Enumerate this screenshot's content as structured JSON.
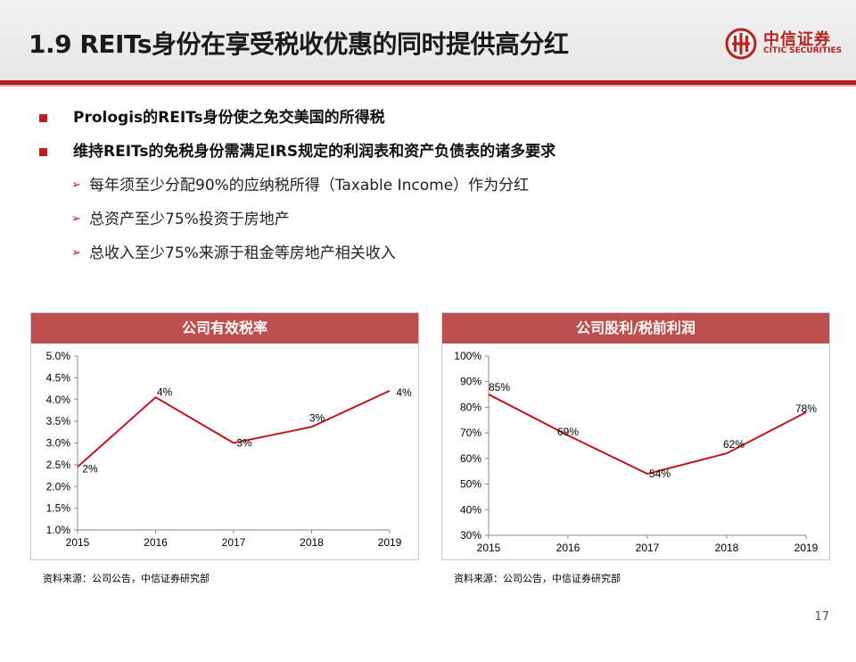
{
  "slide": {
    "title": "1.9 REITs身份在享受税收优惠的同时提供高分红",
    "page_number": "17",
    "logo": {
      "cn": "中信证券",
      "en": "CITIC SECURITIES"
    }
  },
  "bullets": [
    {
      "level": 1,
      "text": "Prologis的REITs身份使之免交美国的所得税"
    },
    {
      "level": 1,
      "text": "维持REITs的免税身份需满足IRS规定的利润表和资产负债表的诸多要求"
    },
    {
      "level": 2,
      "text": "每年须至少分配90%的应纳税所得（Taxable  Income）作为分红"
    },
    {
      "level": 2,
      "text": "总资产至少75%投资于房地产"
    },
    {
      "level": 2,
      "text": "总收入至少75%来源于租金等房地产相关收入"
    }
  ],
  "chart_data": [
    {
      "type": "line",
      "title": "公司有效税率",
      "x": [
        "2015",
        "2016",
        "2017",
        "2018",
        "2019"
      ],
      "values": [
        2.45,
        4.05,
        3.0,
        3.37,
        4.2
      ],
      "data_labels": [
        "2%",
        "4%",
        "3%",
        "3%",
        "4%"
      ],
      "ylim": [
        1.0,
        5.0
      ],
      "yticks": [
        "1.0%",
        "1.5%",
        "2.0%",
        "2.5%",
        "3.0%",
        "3.5%",
        "4.0%",
        "4.5%",
        "5.0%"
      ],
      "line_color": "#c0141c",
      "source": "资料来源：公司公告，中信证券研究部"
    },
    {
      "type": "line",
      "title": "公司股利/税前利润",
      "x": [
        "2015",
        "2016",
        "2017",
        "2018",
        "2019"
      ],
      "values": [
        85,
        69,
        54,
        62,
        78
      ],
      "data_labels": [
        "85%",
        "69%",
        "54%",
        "62%",
        "78%"
      ],
      "ylim": [
        30,
        100
      ],
      "yticks": [
        "30%",
        "40%",
        "50%",
        "60%",
        "70%",
        "80%",
        "90%",
        "100%"
      ],
      "line_color": "#c0141c",
      "source": "资料来源：公司公告，中信证券研究部"
    }
  ]
}
